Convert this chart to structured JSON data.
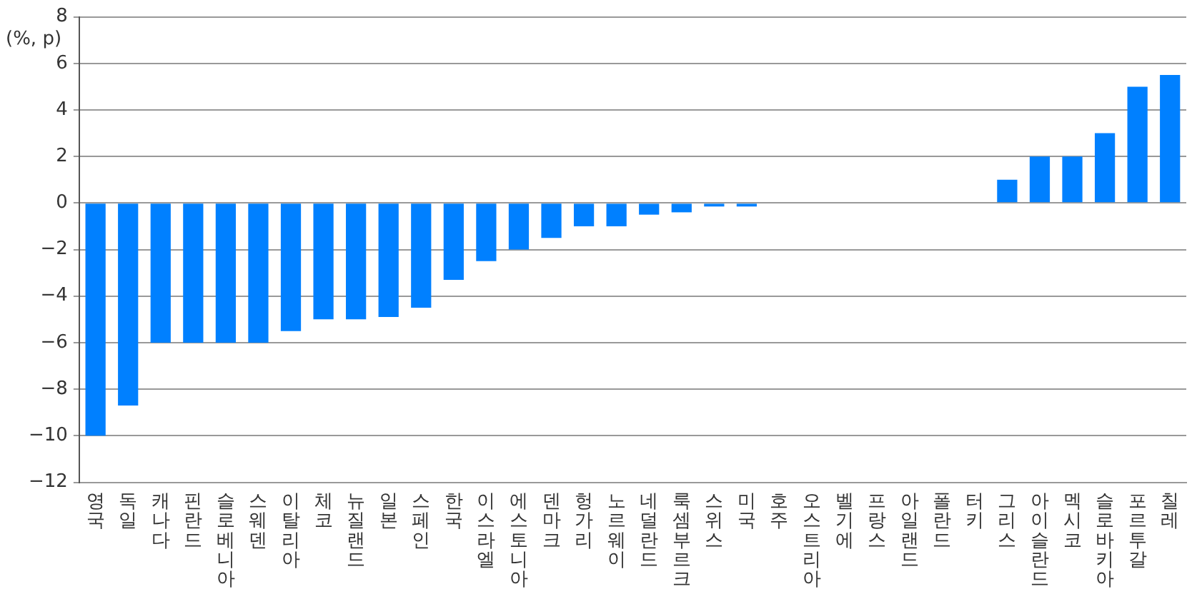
{
  "chart_data": {
    "type": "bar",
    "ylabel": "(%, p)",
    "categories": [
      "영국",
      "독일",
      "캐나다",
      "핀란드",
      "슬로베니아",
      "스웨덴",
      "이탈리아",
      "체코",
      "뉴질랜드",
      "일본",
      "스페인",
      "한국",
      "이스라엘",
      "에스토니아",
      "덴마크",
      "헝가리",
      "노르웨이",
      "네덜란드",
      "룩셈부르크",
      "스위스",
      "미국",
      "호주",
      "오스트리아",
      "벨기에",
      "프랑스",
      "아일랜드",
      "폴란드",
      "터키",
      "그리스",
      "아이슬란드",
      "멕시코",
      "슬로바키아",
      "포르투갈",
      "칠레"
    ],
    "values": [
      -10,
      -8.7,
      -6,
      -6,
      -6,
      -6,
      -5.5,
      -5,
      -5,
      -4.9,
      -4.5,
      -3.3,
      -2.5,
      -2,
      -1.5,
      -1,
      -1,
      -0.5,
      -0.4,
      -0.15,
      -0.15,
      0,
      0,
      0,
      0,
      0,
      0,
      0,
      1,
      2,
      2,
      3,
      5,
      5.5
    ],
    "color": "#0080ff",
    "ylim": [
      -12,
      8
    ],
    "yticks": [
      -12,
      -10,
      -8,
      -6,
      -4,
      -2,
      0,
      2,
      4,
      6,
      8
    ],
    "grid": "y",
    "legend": false
  }
}
